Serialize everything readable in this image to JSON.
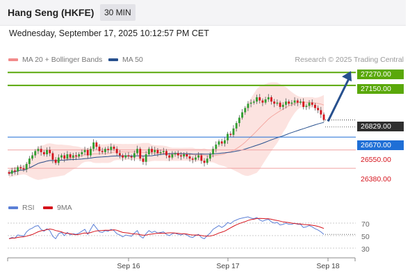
{
  "header": {
    "title": "Hang Seng (HKFE)",
    "timeframe": "30 MIN"
  },
  "datetime": "Wednesday, September 17, 2025 10:12:57 PM CET",
  "legend": {
    "bollinger": {
      "label": "MA 20 + Bollinger Bands",
      "color": "#f28b8b"
    },
    "ma50": {
      "label": "MA 50",
      "color": "#27508e"
    },
    "credit": "Research © 2025 Trading Central"
  },
  "rsi_legend": {
    "rsi": {
      "label": "RSI",
      "color": "#5b7fd6"
    },
    "ma9": {
      "label": "9MA",
      "color": "#d5121b"
    }
  },
  "levels": {
    "resistance_2": "27270.00",
    "resistance_1": "27150.00",
    "last": "26829.00",
    "pivot": "26670.00",
    "support_1": "26550.00",
    "support_2": "26380.00"
  },
  "colors": {
    "up": "#2f9e2f",
    "down": "#d5121b",
    "green_line": "#5aa80a",
    "blue_line": "#1f6fd6",
    "red_line": "#f0a0a0",
    "arrow": "#27508e"
  },
  "rsi_ticks": [
    "70",
    "50",
    "30"
  ],
  "x_labels": [
    "Sep 16",
    "Sep 17",
    "Sep 18"
  ],
  "chart_data": {
    "type": "candlestick",
    "instrument": "Hang Seng (HKFE)",
    "interval": "30 MIN",
    "price_ylim": [
      26200,
      27330
    ],
    "levels": [
      {
        "value": 27270,
        "kind": "resistance"
      },
      {
        "value": 27150,
        "kind": "resistance"
      },
      {
        "value": 26670,
        "kind": "pivot"
      },
      {
        "value": 26550,
        "kind": "support"
      },
      {
        "value": 26380,
        "kind": "support"
      }
    ],
    "last_price": 26829,
    "x_ticks": [
      "Sep 16",
      "Sep 17",
      "Sep 18"
    ],
    "closes": [
      26330,
      26360,
      26350,
      26390,
      26380,
      26370,
      26420,
      26470,
      26500,
      26540,
      26560,
      26530,
      26510,
      26550,
      26520,
      26460,
      26430,
      26480,
      26500,
      26470,
      26510,
      26480,
      26500,
      26490,
      26510,
      26530,
      26550,
      26500,
      26560,
      26620,
      26580,
      26540,
      26530,
      26560,
      26550,
      26580,
      26560,
      26520,
      26500,
      26480,
      26500,
      26490,
      26480,
      26520,
      26560,
      26470,
      26440,
      26510,
      26560,
      26530,
      26550,
      26520,
      26530,
      26540,
      26500,
      26480,
      26510,
      26520,
      26500,
      26490,
      26510,
      26490,
      26470,
      26460,
      26480,
      26500,
      26450,
      26430,
      26470,
      26510,
      26560,
      26600,
      26630,
      26610,
      26640,
      26700,
      26690,
      26750,
      26800,
      26850,
      26900,
      26940,
      26980,
      26990,
      27000,
      27040,
      27010,
      26990,
      27020,
      27040,
      27000,
      26980,
      26990,
      26950,
      26970,
      27000,
      26980,
      26990,
      27010,
      26990,
      27000,
      26950,
      26960,
      26990,
      26970,
      26940,
      26920,
      26880,
      26829
    ],
    "rsi_ylim": [
      20,
      80
    ],
    "rsi_ticks": [
      70,
      50,
      30
    ],
    "rsi": [
      45,
      47,
      46,
      51,
      50,
      49,
      56,
      60,
      62,
      65,
      66,
      60,
      57,
      61,
      58,
      49,
      45,
      53,
      55,
      50,
      55,
      51,
      53,
      52,
      54,
      57,
      60,
      52,
      60,
      68,
      62,
      56,
      55,
      58,
      57,
      60,
      58,
      53,
      51,
      48,
      51,
      50,
      49,
      54,
      58,
      49,
      46,
      53,
      58,
      55,
      57,
      54,
      55,
      56,
      52,
      50,
      53,
      54,
      52,
      51,
      53,
      51,
      48,
      47,
      50,
      52,
      47,
      45,
      50,
      54,
      60,
      63,
      66,
      63,
      66,
      71,
      69,
      73,
      75,
      77,
      78,
      79,
      80,
      78,
      77,
      79,
      75,
      73,
      75,
      76,
      72,
      70,
      71,
      67,
      68,
      70,
      68,
      68,
      70,
      68,
      68,
      63,
      64,
      66,
      64,
      61,
      59,
      56,
      52
    ],
    "rsi_last": 52
  }
}
